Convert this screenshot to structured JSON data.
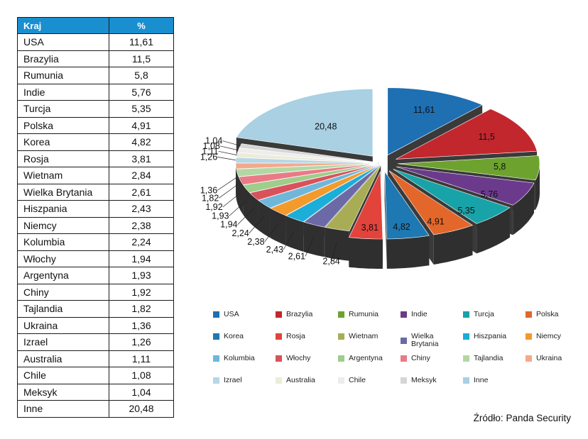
{
  "table": {
    "header": {
      "country": "Kraj",
      "percent": "%"
    },
    "rows": [
      {
        "country": "USA",
        "value": "11,61"
      },
      {
        "country": "Brazylia",
        "value": "11,5"
      },
      {
        "country": "Rumunia",
        "value": "5,8"
      },
      {
        "country": "Indie",
        "value": "5,76"
      },
      {
        "country": "Turcja",
        "value": "5,35"
      },
      {
        "country": "Polska",
        "value": "4,91"
      },
      {
        "country": "Korea",
        "value": "4,82"
      },
      {
        "country": "Rosja",
        "value": "3,81"
      },
      {
        "country": "Wietnam",
        "value": "2,84"
      },
      {
        "country": "Wielka Brytania",
        "value": "2,61"
      },
      {
        "country": "Hiszpania",
        "value": "2,43"
      },
      {
        "country": "Niemcy",
        "value": "2,38"
      },
      {
        "country": "Kolumbia",
        "value": "2,24"
      },
      {
        "country": "Włochy",
        "value": "1,94"
      },
      {
        "country": "Argentyna",
        "value": "1,93"
      },
      {
        "country": "Chiny",
        "value": "1,92"
      },
      {
        "country": "Tajlandia",
        "value": "1,82"
      },
      {
        "country": "Ukraina",
        "value": "1,36"
      },
      {
        "country": "Izrael",
        "value": "1,26"
      },
      {
        "country": "Australia",
        "value": "1,11"
      },
      {
        "country": "Chile",
        "value": "1,08"
      },
      {
        "country": "Meksyk",
        "value": "1,04"
      },
      {
        "country": "Inne",
        "value": "20,48"
      }
    ]
  },
  "chart_data": {
    "type": "pie",
    "style": "3d-exploded",
    "categories": [
      "USA",
      "Brazylia",
      "Rumunia",
      "Indie",
      "Turcja",
      "Polska",
      "Korea",
      "Rosja",
      "Wietnam",
      "Wielka Brytania",
      "Hiszpania",
      "Niemcy",
      "Kolumbia",
      "Włochy",
      "Argentyna",
      "Chiny",
      "Tajlandia",
      "Ukraina",
      "Izrael",
      "Australia",
      "Chile",
      "Meksyk",
      "Inne"
    ],
    "values": [
      11.61,
      11.5,
      5.8,
      5.76,
      5.35,
      4.91,
      4.82,
      3.81,
      2.84,
      2.61,
      2.43,
      2.38,
      2.24,
      1.94,
      1.93,
      1.92,
      1.82,
      1.36,
      1.26,
      1.11,
      1.08,
      1.04,
      20.48
    ],
    "labels": [
      "11,61",
      "11,5",
      "5,8",
      "5,76",
      "5,35",
      "4,91",
      "4,82",
      "3,81",
      "2,84",
      "2,61",
      "2,43",
      "2,38",
      "2,24",
      "1,94",
      "1,93",
      "1,92",
      "1,82",
      "1,36",
      "1,26",
      "1,11",
      "1,08",
      "1,04",
      "20,48"
    ],
    "colors": [
      "#1f6fb3",
      "#c2272d",
      "#6ea22f",
      "#6b3a8c",
      "#18a3a8",
      "#e3672a",
      "#1e78b2",
      "#e2433b",
      "#a8ad55",
      "#6b6aa6",
      "#1aaed8",
      "#f39a2c",
      "#6eb7da",
      "#d9525b",
      "#9fcd8a",
      "#ea7a86",
      "#b3d7a4",
      "#f3a98b",
      "#b7d6e6",
      "#ececd9",
      "#ececec",
      "#d6d6d6",
      "#a9d0e3"
    ],
    "legend": {
      "position": "bottom",
      "items": [
        "USA",
        "Brazylia",
        "Rumunia",
        "Indie",
        "Turcja",
        "Polska",
        "Korea",
        "Rosja",
        "Wietnam",
        "Wielka\nBrytania",
        "Hiszpania",
        "Niemcy",
        "Kolumbia",
        "Włochy",
        "Argentyna",
        "Chiny",
        "Tajlandia",
        "Ukraina",
        "Izrael",
        "Australia",
        "Chile",
        "Meksyk",
        "Inne"
      ]
    }
  },
  "source": "Źródło: Panda Security"
}
